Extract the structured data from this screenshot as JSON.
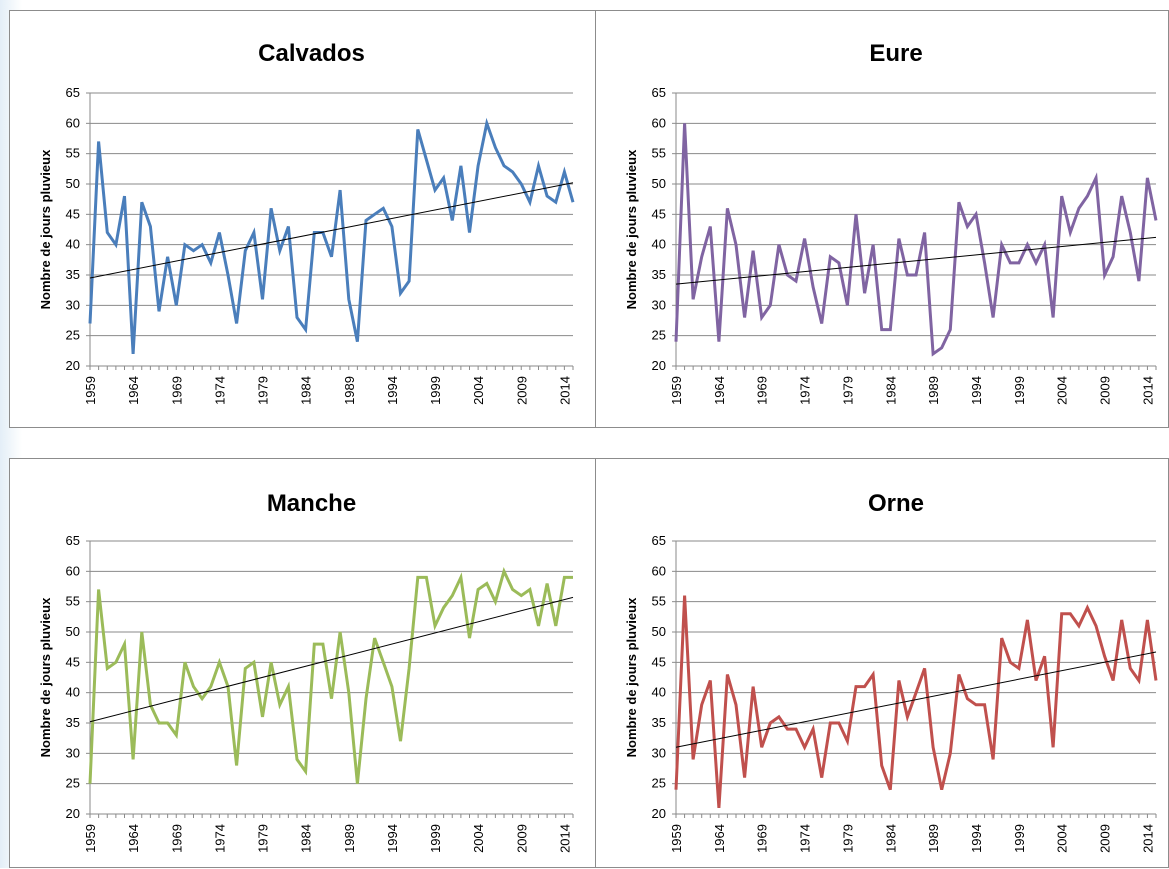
{
  "chart_data": [
    {
      "type": "line",
      "title": "Calvados",
      "ylabel": "Nombre de jours pluvieux",
      "xlabel": "",
      "ylim": [
        20,
        65
      ],
      "yticks": [
        "20",
        "25",
        "30",
        "35",
        "40",
        "45",
        "50",
        "55",
        "60",
        "65"
      ],
      "xticks": [
        "1959",
        "1964",
        "1969",
        "1974",
        "1979",
        "1984",
        "1989",
        "1994",
        "1999",
        "2004",
        "2009",
        "2014"
      ],
      "grid": true,
      "color": "#4a7ebb",
      "x_start": 1959,
      "x_end": 2015,
      "values": [
        27,
        57,
        42,
        40,
        48,
        22,
        47,
        43,
        29,
        38,
        30,
        40,
        39,
        40,
        37,
        42,
        35,
        27,
        39,
        42,
        31,
        46,
        39,
        43,
        28,
        26,
        42,
        42,
        38,
        49,
        31,
        24,
        44,
        45,
        46,
        43,
        32,
        34,
        59,
        54,
        49,
        51,
        44,
        53,
        42,
        53,
        60,
        56,
        53,
        52,
        50,
        47,
        53,
        48,
        47,
        52,
        47
      ],
      "trend": [
        34.5,
        50.2
      ]
    },
    {
      "type": "line",
      "title": "Eure",
      "ylabel": "Nombre de jours pluvieux",
      "xlabel": "",
      "ylim": [
        20,
        65
      ],
      "yticks": [
        "20",
        "25",
        "30",
        "35",
        "40",
        "45",
        "50",
        "55",
        "60",
        "65"
      ],
      "xticks": [
        "1959",
        "1964",
        "1969",
        "1974",
        "1979",
        "1984",
        "1989",
        "1994",
        "1999",
        "2004",
        "2009",
        "2014"
      ],
      "grid": true,
      "color": "#8064a2",
      "x_start": 1959,
      "x_end": 2015,
      "values": [
        24,
        60,
        31,
        38,
        43,
        24,
        46,
        40,
        28,
        39,
        28,
        30,
        40,
        35,
        34,
        41,
        33,
        27,
        38,
        37,
        30,
        45,
        32,
        40,
        26,
        26,
        41,
        35,
        35,
        42,
        22,
        23,
        26,
        47,
        43,
        45,
        37,
        28,
        40,
        37,
        37,
        40,
        37,
        40,
        28,
        48,
        42,
        46,
        48,
        51,
        35,
        38,
        48,
        42,
        34,
        51,
        44
      ],
      "trend": [
        33.5,
        41.2
      ]
    },
    {
      "type": "line",
      "title": "Manche",
      "ylabel": "Nombre de jours pluvieux",
      "xlabel": "",
      "ylim": [
        20,
        65
      ],
      "yticks": [
        "20",
        "25",
        "30",
        "35",
        "40",
        "45",
        "50",
        "55",
        "60",
        "65"
      ],
      "xticks": [
        "1959",
        "1964",
        "1969",
        "1974",
        "1979",
        "1984",
        "1989",
        "1994",
        "1999",
        "2004",
        "2009",
        "2014"
      ],
      "grid": true,
      "color": "#9bbb59",
      "x_start": 1959,
      "x_end": 2015,
      "values": [
        25,
        57,
        44,
        45,
        48,
        29,
        50,
        38,
        35,
        35,
        33,
        45,
        41,
        39,
        41,
        45,
        41,
        28,
        44,
        45,
        36,
        45,
        38,
        41,
        29,
        27,
        48,
        48,
        39,
        50,
        40,
        25,
        39,
        49,
        45,
        41,
        32,
        44,
        59,
        59,
        51,
        54,
        56,
        59,
        49,
        57,
        58,
        55,
        60,
        57,
        56,
        57,
        51,
        58,
        51,
        59,
        59
      ],
      "trend": [
        35.2,
        55.7
      ]
    },
    {
      "type": "line",
      "title": "Orne",
      "ylabel": "Nombre de jours pluvieux",
      "xlabel": "",
      "ylim": [
        20,
        65
      ],
      "yticks": [
        "20",
        "25",
        "30",
        "35",
        "40",
        "45",
        "50",
        "55",
        "60",
        "65"
      ],
      "xticks": [
        "1959",
        "1964",
        "1969",
        "1974",
        "1979",
        "1984",
        "1989",
        "1994",
        "1999",
        "2004",
        "2009",
        "2014"
      ],
      "grid": true,
      "color": "#c0504d",
      "x_start": 1959,
      "x_end": 2015,
      "values": [
        24,
        56,
        29,
        38,
        42,
        21,
        43,
        38,
        26,
        41,
        31,
        35,
        36,
        34,
        34,
        31,
        34,
        26,
        35,
        35,
        32,
        41,
        41,
        43,
        28,
        24,
        42,
        36,
        40,
        44,
        31,
        24,
        30,
        43,
        39,
        38,
        38,
        29,
        49,
        45,
        44,
        52,
        42,
        46,
        31,
        53,
        53,
        51,
        54,
        51,
        46,
        42,
        52,
        44,
        42,
        52,
        42
      ],
      "trend": [
        31.0,
        46.7
      ]
    }
  ]
}
